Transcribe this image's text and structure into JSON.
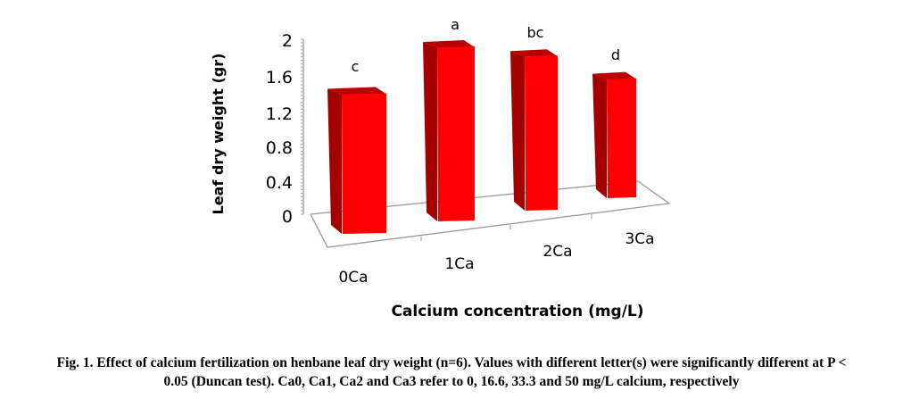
{
  "chart_data": {
    "type": "bar",
    "style": "3d-column",
    "categories": [
      "0Ca",
      "1Ca",
      "2Ca",
      "3Ca"
    ],
    "values": [
      1.55,
      1.95,
      1.8,
      1.45
    ],
    "significance_letters": [
      "c",
      "a",
      "bc",
      "d"
    ],
    "xlabel": "Calcium concentration (mg/L)",
    "ylabel": "Leaf dry weight (gr)",
    "ylim": [
      0,
      2
    ],
    "yticks": [
      "0",
      "0.4",
      "0.8",
      "1.2",
      "1.6",
      "2"
    ],
    "bar_color": "#ff0000",
    "bar_side_color": "#a50000",
    "grid": false,
    "legend": "none"
  },
  "caption": {
    "line1": "Fig. 1. Effect of calcium fertilization on henbane leaf dry weight (n=6). Values with different letter(s) were significantly different at P <",
    "line2": "0.05 (Duncan test). Ca0, Ca1, Ca2 and Ca3 refer to 0, 16.6, 33.3 and 50 mg/L calcium, respectively"
  }
}
